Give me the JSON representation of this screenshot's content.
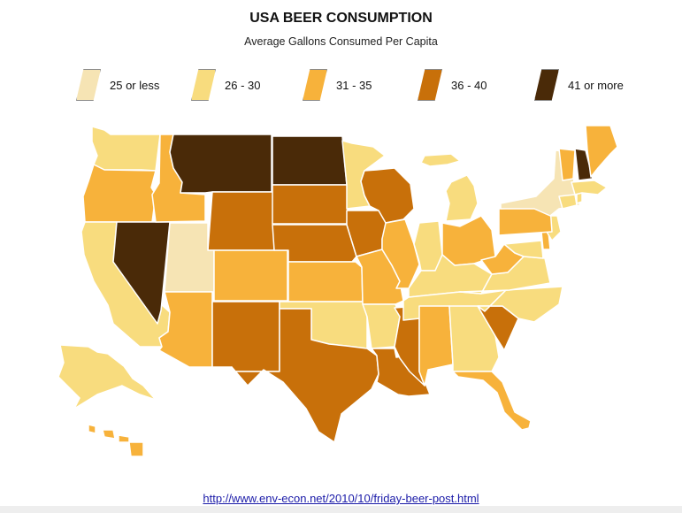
{
  "title": "USA BEER CONSUMPTION",
  "subtitle": "Average Gallons Consumed Per Capita",
  "legend": [
    {
      "label": "25 or less",
      "color": "#f6e4b4"
    },
    {
      "label": "26 - 30",
      "color": "#f8dc7e"
    },
    {
      "label": "31 - 35",
      "color": "#f7b23b"
    },
    {
      "label": "36 - 40",
      "color": "#c8700a"
    },
    {
      "label": "41 or more",
      "color": "#4a2a08"
    }
  ],
  "map_background": "#ffffff",
  "state_border_color": "#ffffff",
  "source_url": "http://www.env-econ.net/2010/10/friday-beer-post.html",
  "states": {
    "WA": 1,
    "OR": 2,
    "CA": 1,
    "NV": 4,
    "ID": 2,
    "MT": 4,
    "WY": 3,
    "UT": 0,
    "AZ": 2,
    "CO": 2,
    "NM": 3,
    "ND": 4,
    "SD": 3,
    "NE": 3,
    "KS": 2,
    "OK": 1,
    "TX": 3,
    "MN": 1,
    "IA": 3,
    "MO": 2,
    "AR": 1,
    "LA": 3,
    "WI": 3,
    "IL": 2,
    "MS": 3,
    "MI": 1,
    "IN": 1,
    "OH": 2,
    "KY": 1,
    "TN": 1,
    "AL": 2,
    "GA": 1,
    "FL": 2,
    "SC": 3,
    "NC": 1,
    "VA": 1,
    "WV": 2,
    "MD": 1,
    "DE": 2,
    "NJ": 1,
    "PA": 2,
    "NY": 0,
    "CT": 1,
    "RI": 1,
    "MA": 1,
    "VT": 2,
    "NH": 4,
    "ME": 2,
    "AK": 1,
    "HI": 2
  }
}
